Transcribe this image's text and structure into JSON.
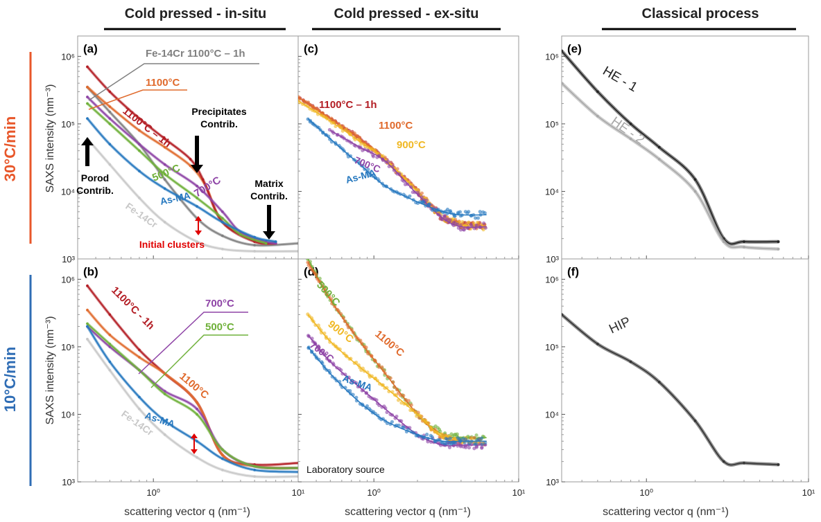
{
  "column_titles": [
    "Cold pressed - in-situ",
    "Cold pressed - ex-situ",
    "Classical process"
  ],
  "row_labels": [
    {
      "text": "30°C/min",
      "color": "#e8572a"
    },
    {
      "text": "10°C/min",
      "color": "#2f6db5"
    }
  ],
  "ylabel": "SAXS intensity (nm⁻³)",
  "xlabel": "scattering vector q (nm⁻¹)",
  "tick_labels": {
    "y": {
      "1e3": "10³",
      "1e4": "10⁴",
      "1e5": "10⁵",
      "1e6": "10⁶"
    },
    "x": {
      "1e0": "10⁰",
      "1e1": "10¹"
    }
  },
  "colors": {
    "fe14cr_1100_1h": "#808080",
    "fe14cr": "#c8c8c8",
    "c1100": "#e06a2c",
    "c1100_1h": "#b31d24",
    "c900": "#f0b824",
    "c700": "#8e44a6",
    "c500": "#6fb03a",
    "asma": "#2678bf",
    "he1": "#222222",
    "he2": "#a8a8a8",
    "hip": "#333333",
    "arrow": "#000000",
    "red_arrow": "#e00000"
  },
  "chart_data": [
    {
      "panel": "(a)",
      "type": "line",
      "x_scale": "log",
      "y_scale": "log",
      "xlim": [
        0.3,
        10
      ],
      "ylim": [
        1000,
        2000000
      ],
      "series": [
        {
          "name": "Fe-14Cr 1100°C – 1h",
          "color_key": "fe14cr_1100_1h",
          "x": [
            0.35,
            0.5,
            0.8,
            1.2,
            2,
            3,
            5,
            10
          ],
          "y": [
            350000,
            150000,
            50000,
            15000,
            4000,
            2200,
            1600,
            1700
          ]
        },
        {
          "name": "1100°C",
          "color_key": "c1100",
          "x": [
            0.35,
            0.5,
            0.8,
            1.2,
            1.8,
            2.3,
            3,
            5,
            7
          ],
          "y": [
            350000,
            180000,
            80000,
            45000,
            24000,
            12000,
            3500,
            1900,
            1700
          ]
        },
        {
          "name": "1100°C – 1h",
          "color_key": "c1100_1h",
          "x": [
            0.35,
            0.5,
            0.8,
            1.2,
            1.8,
            2.2,
            3,
            5,
            7
          ],
          "y": [
            700000,
            300000,
            120000,
            60000,
            30000,
            15000,
            3500,
            1800,
            1700
          ]
        },
        {
          "name": "700°C",
          "color_key": "c700",
          "x": [
            0.35,
            0.5,
            0.8,
            1.2,
            2,
            3,
            4,
            6,
            7
          ],
          "y": [
            250000,
            120000,
            50000,
            25000,
            12000,
            5000,
            2500,
            1800,
            1700
          ]
        },
        {
          "name": "500°C",
          "color_key": "c500",
          "x": [
            0.35,
            0.5,
            0.8,
            1.2,
            2,
            3,
            4,
            6
          ],
          "y": [
            200000,
            100000,
            40000,
            18000,
            8000,
            4000,
            2300,
            1700
          ]
        },
        {
          "name": "As-MA",
          "color_key": "asma",
          "x": [
            0.35,
            0.5,
            0.8,
            1.2,
            2,
            3,
            5,
            7
          ],
          "y": [
            120000,
            50000,
            20000,
            11000,
            6000,
            3500,
            2100,
            1800
          ]
        },
        {
          "name": "Fe-14Cr",
          "color_key": "fe14cr",
          "x": [
            0.35,
            0.5,
            0.8,
            1.2,
            2,
            3,
            5,
            10
          ],
          "y": [
            60000,
            25000,
            8000,
            3500,
            1800,
            1400,
            1300,
            1300
          ]
        }
      ],
      "labels": [
        {
          "text": "Fe-14Cr 1100°C – 1h",
          "color_key": "fe14cr_1100_1h"
        },
        {
          "text": "1100°C",
          "color_key": "c1100"
        },
        {
          "text": "1100°C – 1h",
          "color_key": "c1100_1h"
        },
        {
          "text": "Precipitates",
          "color_key": "arrow"
        },
        {
          "text": "Contrib.",
          "color_key": "arrow"
        },
        {
          "text": "Porod",
          "color_key": "arrow"
        },
        {
          "text": "Contrib.",
          "color_key": "arrow"
        },
        {
          "text": "500°C",
          "color_key": "c500"
        },
        {
          "text": "700°C",
          "color_key": "c700"
        },
        {
          "text": "As-MA",
          "color_key": "asma"
        },
        {
          "text": "Fe-14Cr",
          "color_key": "fe14cr"
        },
        {
          "text": "Matrix",
          "color_key": "arrow"
        },
        {
          "text": "Contrib.",
          "color_key": "arrow"
        },
        {
          "text": "Initial clusters",
          "color_key": "red_arrow"
        }
      ]
    },
    {
      "panel": "(b)",
      "type": "line",
      "x_scale": "log",
      "y_scale": "log",
      "xlim": [
        0.3,
        10
      ],
      "ylim": [
        1000,
        2000000
      ],
      "series": [
        {
          "name": "1100°C - 1h",
          "color_key": "c1100_1h",
          "x": [
            0.35,
            0.5,
            0.8,
            1.2,
            2,
            3,
            5,
            10
          ],
          "y": [
            800000,
            300000,
            90000,
            40000,
            15000,
            2500,
            1800,
            1900
          ]
        },
        {
          "name": "1100°C",
          "color_key": "c1100",
          "x": [
            0.35,
            0.5,
            0.8,
            1.2,
            2,
            3,
            5,
            10
          ],
          "y": [
            350000,
            150000,
            70000,
            40000,
            15000,
            2500,
            1700,
            1600
          ]
        },
        {
          "name": "700°C",
          "color_key": "c700",
          "x": [
            0.35,
            0.5,
            0.8,
            1.2,
            2,
            3,
            5,
            10
          ],
          "y": [
            200000,
            100000,
            45000,
            22000,
            12000,
            3000,
            1700,
            1600
          ]
        },
        {
          "name": "500°C",
          "color_key": "c500",
          "x": [
            0.35,
            0.5,
            0.8,
            1.2,
            2,
            3,
            5,
            10
          ],
          "y": [
            220000,
            110000,
            45000,
            20000,
            10000,
            3000,
            1700,
            1600
          ]
        },
        {
          "name": "As-MA",
          "color_key": "asma",
          "x": [
            0.35,
            0.5,
            0.8,
            1.2,
            2,
            3,
            5,
            10
          ],
          "y": [
            200000,
            60000,
            18000,
            8000,
            4000,
            2200,
            1500,
            1400
          ]
        },
        {
          "name": "Fe-14Cr",
          "color_key": "fe14cr",
          "x": [
            0.35,
            0.5,
            0.8,
            1.2,
            2,
            3,
            5,
            10
          ],
          "y": [
            130000,
            45000,
            12000,
            5000,
            2300,
            1500,
            1200,
            1200
          ]
        }
      ],
      "labels": [
        {
          "text": "1100°C - 1h",
          "color_key": "c1100_1h"
        },
        {
          "text": "700°C",
          "color_key": "c700"
        },
        {
          "text": "500°C",
          "color_key": "c500"
        },
        {
          "text": "1100°C",
          "color_key": "c1100"
        },
        {
          "text": "As-MA",
          "color_key": "asma"
        },
        {
          "text": "Fe-14Cr",
          "color_key": "fe14cr"
        }
      ]
    },
    {
      "panel": "(c)",
      "type": "scatter",
      "x_scale": "log",
      "y_scale": "log",
      "xlim": [
        0.3,
        10
      ],
      "ylim": [
        1000,
        2000000
      ],
      "series": [
        {
          "name": "1100°C – 1h",
          "color_key": "c1100_1h",
          "x": [
            0.3,
            0.5,
            0.8,
            1.2,
            2,
            3,
            4,
            6
          ],
          "y": [
            250000,
            120000,
            60000,
            30000,
            10000,
            4000,
            3200,
            3000
          ]
        },
        {
          "name": "1100°C",
          "color_key": "c1100",
          "x": [
            0.3,
            0.5,
            0.8,
            1.2,
            2,
            3,
            4,
            6
          ],
          "y": [
            250000,
            120000,
            60000,
            30000,
            10000,
            4000,
            3200,
            3000
          ]
        },
        {
          "name": "900°C",
          "color_key": "c900",
          "x": [
            0.3,
            0.5,
            0.8,
            1.2,
            2,
            3,
            4,
            6
          ],
          "y": [
            220000,
            110000,
            55000,
            30000,
            10000,
            4000,
            3200,
            3000
          ]
        },
        {
          "name": "700°C",
          "color_key": "c700",
          "x": [
            0.5,
            0.8,
            1.2,
            2,
            3,
            4,
            6
          ],
          "y": [
            80000,
            45000,
            28000,
            9000,
            4000,
            3000,
            3000
          ]
        },
        {
          "name": "As-MA",
          "color_key": "asma",
          "x": [
            0.35,
            0.5,
            0.8,
            1.2,
            2,
            3,
            4,
            6
          ],
          "y": [
            120000,
            60000,
            25000,
            12000,
            7000,
            5000,
            4500,
            4500
          ]
        }
      ],
      "labels": [
        {
          "text": "1100°C – 1h",
          "color_key": "c1100_1h"
        },
        {
          "text": "1100°C",
          "color_key": "c1100"
        },
        {
          "text": "900°C",
          "color_key": "c900"
        },
        {
          "text": "700°C",
          "color_key": "c700"
        },
        {
          "text": "As-MA",
          "color_key": "asma"
        }
      ]
    },
    {
      "panel": "(d)",
      "type": "scatter",
      "x_scale": "log",
      "y_scale": "log",
      "xlim": [
        0.3,
        10
      ],
      "ylim": [
        1000,
        2000000
      ],
      "series": [
        {
          "name": "500°C",
          "color_key": "c500",
          "x": [
            0.35,
            0.5,
            0.8,
            1.2,
            2,
            3,
            4,
            6
          ],
          "y": [
            2000000,
            500000,
            120000,
            40000,
            10000,
            5000,
            4500,
            4500
          ]
        },
        {
          "name": "1100°C",
          "color_key": "c1100",
          "x": [
            0.35,
            0.5,
            0.8,
            1.2,
            2,
            3,
            4,
            6
          ],
          "y": [
            1800000,
            500000,
            120000,
            40000,
            10000,
            4500,
            4000,
            4000
          ]
        },
        {
          "name": "900°C",
          "color_key": "c900",
          "x": [
            0.35,
            0.5,
            0.8,
            1.2,
            2,
            3,
            4,
            6
          ],
          "y": [
            300000,
            120000,
            50000,
            25000,
            10000,
            4500,
            4000,
            4000
          ]
        },
        {
          "name": "700°C",
          "color_key": "c700",
          "x": [
            0.35,
            0.5,
            0.8,
            1.2,
            2,
            3,
            4,
            6
          ],
          "y": [
            150000,
            60000,
            25000,
            12000,
            5000,
            3500,
            3500,
            3500
          ]
        },
        {
          "name": "As-MA",
          "color_key": "asma",
          "x": [
            0.35,
            0.5,
            0.8,
            1.2,
            2,
            3,
            4,
            6
          ],
          "y": [
            100000,
            40000,
            15000,
            8000,
            5000,
            4000,
            4000,
            4000
          ]
        }
      ],
      "labels": [
        {
          "text": "500°C",
          "color_key": "c500"
        },
        {
          "text": "900°C",
          "color_key": "c900"
        },
        {
          "text": "1100°C",
          "color_key": "c1100"
        },
        {
          "text": "700°C",
          "color_key": "c700"
        },
        {
          "text": "As-MA",
          "color_key": "asma"
        }
      ],
      "annotation": "Laboratory source"
    },
    {
      "panel": "(e)",
      "type": "line",
      "x_scale": "log",
      "y_scale": "log",
      "xlim": [
        0.3,
        10
      ],
      "ylim": [
        1000,
        2000000
      ],
      "series": [
        {
          "name": "HE - 1",
          "color_key": "he1",
          "x": [
            0.3,
            0.5,
            0.8,
            1.2,
            2,
            3,
            4,
            6.5
          ],
          "y": [
            1200000,
            300000,
            100000,
            45000,
            15000,
            2000,
            1800,
            1800
          ]
        },
        {
          "name": "HE - 2",
          "color_key": "he2",
          "x": [
            0.3,
            0.5,
            0.8,
            1.2,
            2,
            3,
            4,
            6.5
          ],
          "y": [
            400000,
            130000,
            60000,
            30000,
            10000,
            1800,
            1500,
            1400
          ]
        }
      ],
      "labels": [
        {
          "text": "HE - 1",
          "color_key": "he1"
        },
        {
          "text": "HE - 2",
          "color_key": "he2"
        }
      ]
    },
    {
      "panel": "(f)",
      "type": "line",
      "x_scale": "log",
      "y_scale": "log",
      "xlim": [
        0.3,
        10
      ],
      "ylim": [
        1000,
        2000000
      ],
      "series": [
        {
          "name": "HIP",
          "color_key": "hip",
          "x": [
            0.3,
            0.5,
            0.8,
            1.2,
            2,
            3,
            4,
            6.5
          ],
          "y": [
            300000,
            110000,
            60000,
            30000,
            8000,
            2000,
            1900,
            1800
          ]
        }
      ],
      "labels": [
        {
          "text": "HIP",
          "color_key": "hip"
        }
      ]
    }
  ]
}
